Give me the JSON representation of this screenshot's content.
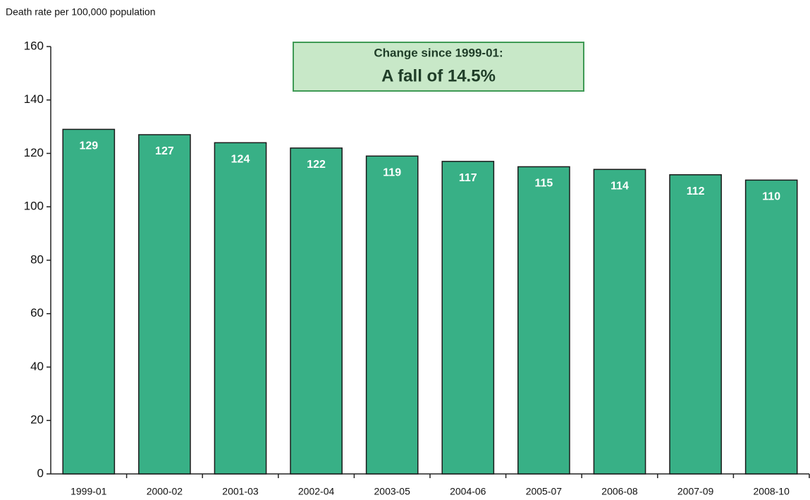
{
  "chart_data": {
    "type": "bar",
    "y_axis_label": "Death rate per 100,000 population",
    "annotations": [
      "Change since 1999-01:",
      "A fall of 14.5%"
    ],
    "categories": [
      "1999-01",
      "2000-02",
      "2001-03",
      "2002-04",
      "2003-05",
      "2004-06",
      "2005-07",
      "2006-08",
      "2007-09",
      "2008-10"
    ],
    "values": [
      129,
      127,
      124,
      122,
      119,
      117,
      115,
      114,
      112,
      110
    ],
    "color": "#38b086",
    "ylim": [
      0,
      160
    ],
    "yticks": [
      0,
      20,
      40,
      60,
      80,
      100,
      120,
      140,
      160
    ],
    "grid": false
  }
}
